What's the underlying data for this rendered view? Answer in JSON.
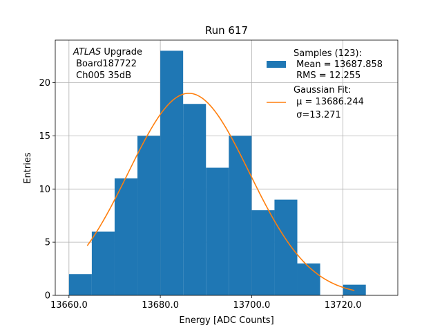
{
  "chart_data": {
    "type": "bar",
    "title": "Run 617",
    "xlabel": "Energy [ADC Counts]",
    "ylabel": "Entries",
    "xlim": [
      13657.0,
      13732.0
    ],
    "ylim": [
      0,
      24
    ],
    "grid": true,
    "xticks": [
      13660.0,
      13680.0,
      13700.0,
      13720.0
    ],
    "xtick_labels": [
      "13660.0",
      "13680.0",
      "13700.0",
      "13720.0"
    ],
    "yticks": [
      0,
      5,
      10,
      15,
      20
    ],
    "yticks_labels": [
      "0",
      "5",
      "10",
      "15",
      "20"
    ],
    "histogram": {
      "bin_edges": [
        13660,
        13665,
        13670,
        13675,
        13680,
        13685,
        13690,
        13695,
        13700,
        13705,
        13710,
        13715,
        13720,
        13725
      ],
      "counts": [
        2,
        6,
        11,
        15,
        23,
        18,
        12,
        15,
        8,
        9,
        3,
        0,
        1
      ],
      "color": "#1f77b4"
    },
    "fit": {
      "type": "gaussian",
      "mu": 13686.244,
      "sigma": 13.271,
      "amplitude": 19.0,
      "x_range": [
        13664.0,
        13722.5
      ],
      "color": "#ff7f0e"
    },
    "annotation": {
      "italic": "ATLAS",
      "line1_rest": " Upgrade",
      "line2": " Board187722",
      "line3": " Ch005 35dB"
    },
    "legend": {
      "placement": "top-right",
      "entries": [
        {
          "lines": [
            "Samples (123):",
            " Mean = 13687.858",
            " RMS = 12.255"
          ],
          "kind": "patch",
          "color": "#1f77b4"
        },
        {
          "lines": [
            "Gaussian Fit:",
            " μ = 13686.244",
            " σ=13.271"
          ],
          "kind": "line",
          "color": "#ff7f0e"
        }
      ]
    }
  }
}
